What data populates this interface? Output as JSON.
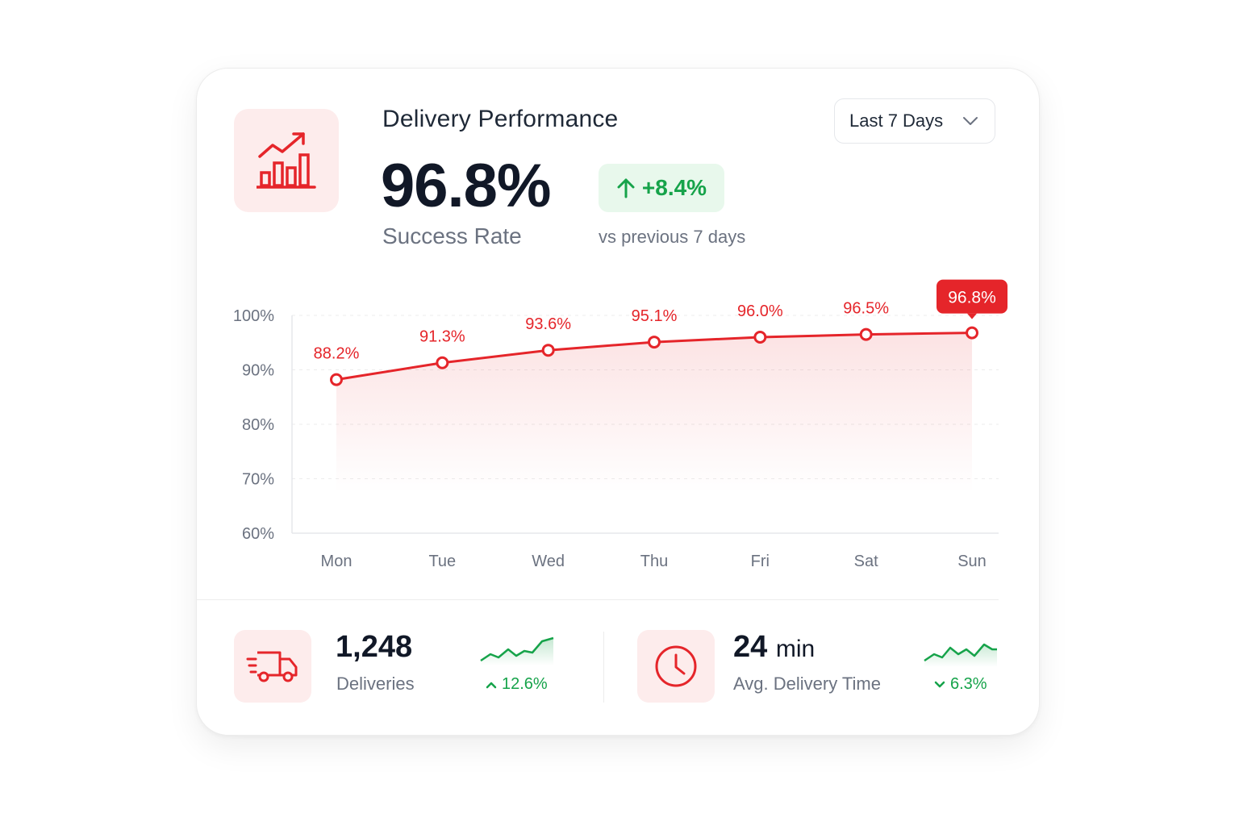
{
  "header": {
    "title": "Delivery Performance",
    "metric_value": "96.8%",
    "metric_label": "Success Rate",
    "change": "+8.4%",
    "change_caption": "vs previous 7 days",
    "range_select": {
      "value": "Last 7 Days"
    }
  },
  "icons": {
    "header": "bar-chart-trend-icon",
    "deliveries": "delivery-truck-icon",
    "time": "clock-icon",
    "up": "arrow-up-icon",
    "dropdown": "chevron-down-icon"
  },
  "colors": {
    "accent": "#e5252a",
    "positive": "#16a34a",
    "tile_bg": "#fdecec"
  },
  "chart_data": {
    "type": "line",
    "categories": [
      "Mon",
      "Tue",
      "Wed",
      "Thu",
      "Fri",
      "Sat",
      "Sun"
    ],
    "series": [
      {
        "values": [
          88.2,
          91.3,
          93.6,
          95.1,
          96.0,
          96.5,
          96.8
        ]
      }
    ],
    "data_labels": [
      "88.2%",
      "91.3%",
      "93.6%",
      "95.1%",
      "96.0%",
      "96.5%",
      "96.8%"
    ],
    "y_ticks": [
      "100%",
      "90%",
      "80%",
      "70%",
      "60%"
    ],
    "ylim": [
      60,
      100
    ],
    "grid": true,
    "highlight_index": 6
  },
  "stats": {
    "deliveries": {
      "value": "1,248",
      "label": "Deliveries",
      "change": "12.6%",
      "trend": "up"
    },
    "avg_time": {
      "value": "24",
      "unit": "min",
      "label": "Avg. Delivery Time",
      "change": "6.3%",
      "trend": "down"
    }
  }
}
